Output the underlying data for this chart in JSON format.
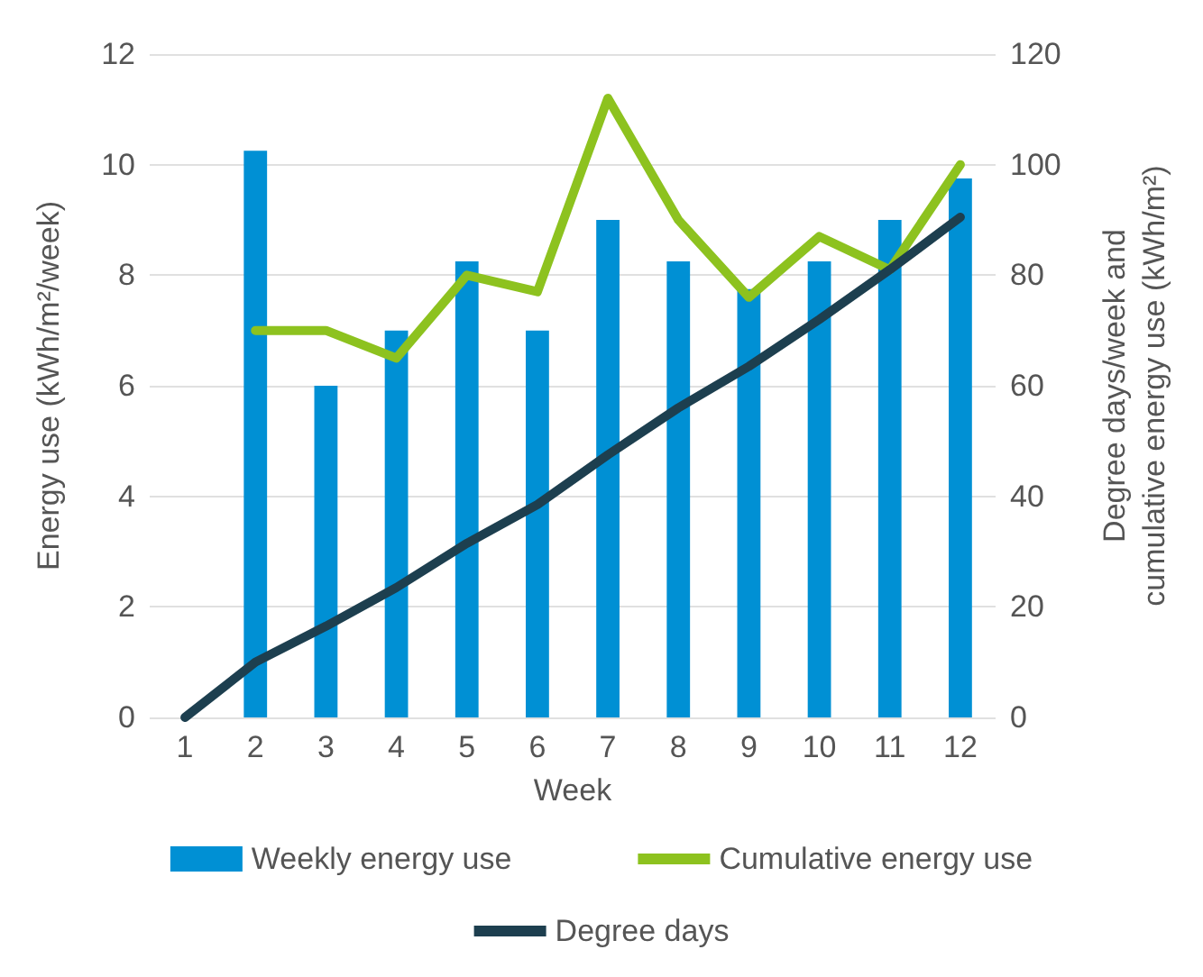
{
  "chart_data": {
    "type": "bar",
    "xlabel": "Week",
    "ylabel": "Energy use (kWh/m²/week)",
    "y2label": "Degree days/week and cumulative energy use (kWh/m²)",
    "categories": [
      "1",
      "2",
      "3",
      "4",
      "5",
      "6",
      "7",
      "8",
      "9",
      "10",
      "11",
      "12"
    ],
    "series": [
      {
        "name": "Weekly energy use",
        "color": "#0090d4",
        "values": [
          null,
          10.25,
          6,
          7,
          8.25,
          7,
          9,
          8.25,
          7.75,
          8.25,
          9,
          9.75
        ]
      },
      {
        "name": "Cumulative energy use",
        "type": "line",
        "axis": "y2",
        "color": "#8dc21f",
        "values": [
          null,
          70,
          70,
          65,
          80,
          77,
          112,
          90,
          76,
          87,
          81,
          100
        ]
      },
      {
        "name": "Degree days",
        "type": "line",
        "axis": "y2",
        "color": "#1d3f4f",
        "values": [
          0,
          10,
          16.5,
          23.5,
          31.5,
          38.5,
          47.5,
          56,
          63.5,
          72,
          81,
          90.5
        ]
      }
    ],
    "ylim": [
      0,
      12
    ],
    "yticks": [
      0,
      2,
      4,
      6,
      8,
      10,
      12
    ],
    "y2lim": [
      0,
      120
    ],
    "y2ticks": [
      0,
      20,
      40,
      60,
      80,
      100,
      120
    ],
    "grid": "y",
    "legend": "bottom",
    "marker": "none",
    "line_style": "solid"
  }
}
